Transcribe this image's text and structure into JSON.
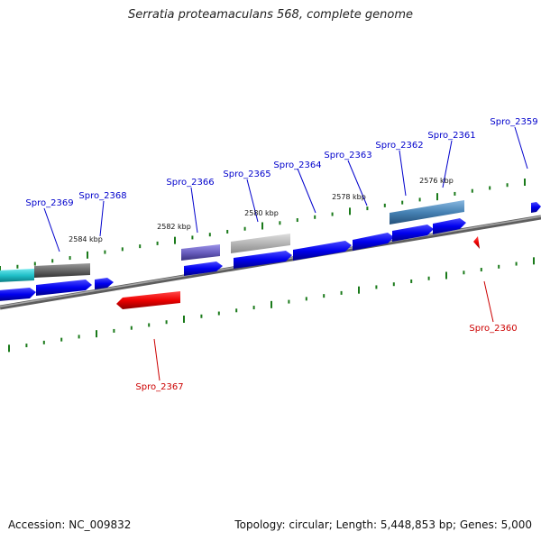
{
  "title": "Serratia proteamaculans 568, complete genome",
  "accession": "Accession: NC_009832",
  "summary": "Topology: circular; Length: 5,448,853 bp; Genes: 5,000",
  "colors": {
    "backbone": "#7f7f7f",
    "forward_gene": "#0000ee",
    "reverse_gene": "#ee0000",
    "label_forward": "#0000cc",
    "label_reverse": "#cc0000",
    "tick": "#1a7a1a",
    "feature_teal": "#20c0c8",
    "feature_dark": "#666666",
    "feature_purple": "#6a5fc0",
    "feature_grey": "#b5b5b5",
    "feature_steel": "#4682b4"
  },
  "scale_labels": [
    "2584 kbp",
    "2582 kbp",
    "2580 kbp",
    "2578 kbp",
    "2576 kbp"
  ],
  "gene_labels": [
    "Spro_2369",
    "Spro_2368",
    "Spro_2366",
    "Spro_2365",
    "Spro_2364",
    "Spro_2363",
    "Spro_2362",
    "Spro_2361",
    "Spro_2359",
    "Spro_2367",
    "Spro_2360"
  ]
}
